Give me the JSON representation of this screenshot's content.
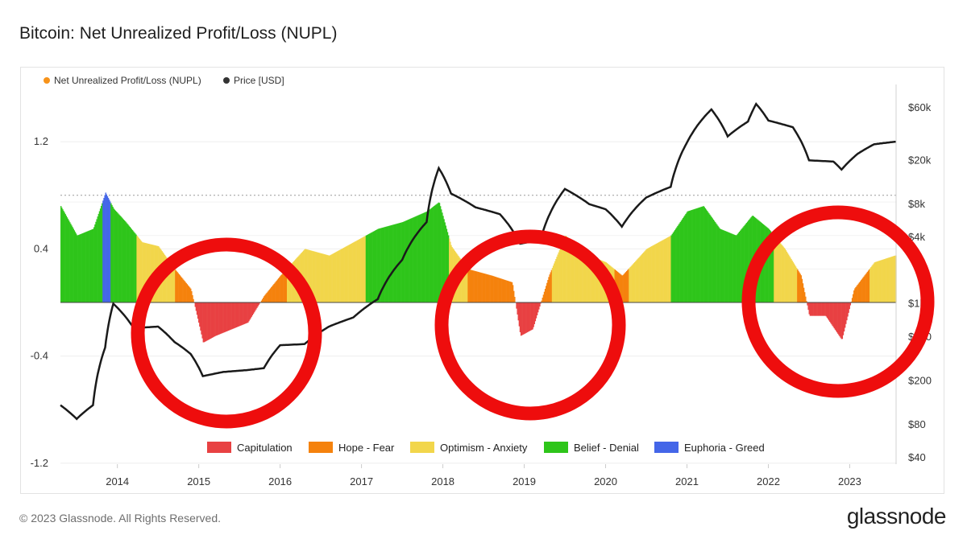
{
  "page": {
    "title": "Bitcoin: Net Unrealized Profit/Loss (NUPL)",
    "copyright": "© 2023 Glassnode. All Rights Reserved.",
    "logo": "glassnode"
  },
  "chart_data": {
    "type": "bar",
    "legend_top": [
      {
        "label": "Net Unrealized Profit/Loss (NUPL)",
        "color": "#f7931a"
      },
      {
        "label": "Price [USD]",
        "color": "#333333"
      }
    ],
    "legend_bottom": [
      {
        "label": "Capitulation",
        "color": "#e84142"
      },
      {
        "label": "Hope - Fear",
        "color": "#f5820d"
      },
      {
        "label": "Optimism - Anxiety",
        "color": "#f2d64b"
      },
      {
        "label": "Belief - Denial",
        "color": "#2ec51a"
      },
      {
        "label": "Euphoria - Greed",
        "color": "#4466e8"
      }
    ],
    "x_ticks": [
      "2014",
      "2015",
      "2016",
      "2017",
      "2018",
      "2019",
      "2020",
      "2021",
      "2022",
      "2023"
    ],
    "left_axis": {
      "ticks": [
        "1.2",
        "0.4",
        "-0.4",
        "-1.2"
      ],
      "tick_values": [
        1.2,
        0.4,
        -0.4,
        -1.2
      ],
      "range": [
        -1.2,
        1.2
      ]
    },
    "right_axis": {
      "ticks": [
        "$60k",
        "$20k",
        "$8k",
        "$4k",
        "$1k",
        "$500",
        "$200",
        "$80",
        "$40"
      ],
      "tick_values": [
        60000,
        20000,
        8000,
        4000,
        1000,
        500,
        200,
        80,
        40
      ],
      "scale": "log"
    },
    "nupl_series": [
      {
        "year": 2013.3,
        "value": 0.72
      },
      {
        "year": 2013.5,
        "value": 0.5
      },
      {
        "year": 2013.7,
        "value": 0.55
      },
      {
        "year": 2013.85,
        "value": 0.82
      },
      {
        "year": 2013.95,
        "value": 0.7
      },
      {
        "year": 2014.1,
        "value": 0.6
      },
      {
        "year": 2014.3,
        "value": 0.45
      },
      {
        "year": 2014.5,
        "value": 0.42
      },
      {
        "year": 2014.7,
        "value": 0.25
      },
      {
        "year": 2014.9,
        "value": 0.1
      },
      {
        "year": 2015.05,
        "value": -0.3
      },
      {
        "year": 2015.2,
        "value": -0.25
      },
      {
        "year": 2015.4,
        "value": -0.2
      },
      {
        "year": 2015.6,
        "value": -0.15
      },
      {
        "year": 2015.8,
        "value": 0.05
      },
      {
        "year": 2016.0,
        "value": 0.2
      },
      {
        "year": 2016.3,
        "value": 0.4
      },
      {
        "year": 2016.6,
        "value": 0.35
      },
      {
        "year": 2016.9,
        "value": 0.45
      },
      {
        "year": 2017.2,
        "value": 0.55
      },
      {
        "year": 2017.5,
        "value": 0.6
      },
      {
        "year": 2017.8,
        "value": 0.68
      },
      {
        "year": 2017.95,
        "value": 0.75
      },
      {
        "year": 2018.1,
        "value": 0.42
      },
      {
        "year": 2018.3,
        "value": 0.25
      },
      {
        "year": 2018.6,
        "value": 0.2
      },
      {
        "year": 2018.85,
        "value": 0.15
      },
      {
        "year": 2018.95,
        "value": -0.25
      },
      {
        "year": 2019.1,
        "value": -0.2
      },
      {
        "year": 2019.3,
        "value": 0.2
      },
      {
        "year": 2019.5,
        "value": 0.5
      },
      {
        "year": 2019.8,
        "value": 0.35
      },
      {
        "year": 2020.0,
        "value": 0.3
      },
      {
        "year": 2020.2,
        "value": 0.2
      },
      {
        "year": 2020.5,
        "value": 0.4
      },
      {
        "year": 2020.8,
        "value": 0.5
      },
      {
        "year": 2021.0,
        "value": 0.68
      },
      {
        "year": 2021.2,
        "value": 0.72
      },
      {
        "year": 2021.4,
        "value": 0.55
      },
      {
        "year": 2021.6,
        "value": 0.5
      },
      {
        "year": 2021.8,
        "value": 0.65
      },
      {
        "year": 2022.0,
        "value": 0.55
      },
      {
        "year": 2022.2,
        "value": 0.4
      },
      {
        "year": 2022.4,
        "value": 0.2
      },
      {
        "year": 2022.5,
        "value": -0.1
      },
      {
        "year": 2022.7,
        "value": -0.1
      },
      {
        "year": 2022.9,
        "value": -0.28
      },
      {
        "year": 2023.05,
        "value": 0.1
      },
      {
        "year": 2023.3,
        "value": 0.3
      },
      {
        "year": 2023.55,
        "value": 0.35
      }
    ],
    "price_series": [
      {
        "year": 2013.3,
        "price": 120
      },
      {
        "year": 2013.5,
        "price": 90
      },
      {
        "year": 2013.7,
        "price": 120
      },
      {
        "year": 2013.85,
        "price": 400
      },
      {
        "year": 2013.95,
        "price": 1000
      },
      {
        "year": 2014.2,
        "price": 600
      },
      {
        "year": 2014.5,
        "price": 620
      },
      {
        "year": 2014.7,
        "price": 450
      },
      {
        "year": 2014.9,
        "price": 350
      },
      {
        "year": 2015.05,
        "price": 220
      },
      {
        "year": 2015.3,
        "price": 240
      },
      {
        "year": 2015.6,
        "price": 250
      },
      {
        "year": 2015.8,
        "price": 260
      },
      {
        "year": 2016.0,
        "price": 420
      },
      {
        "year": 2016.3,
        "price": 430
      },
      {
        "year": 2016.6,
        "price": 620
      },
      {
        "year": 2016.9,
        "price": 750
      },
      {
        "year": 2017.2,
        "price": 1100
      },
      {
        "year": 2017.5,
        "price": 2500
      },
      {
        "year": 2017.8,
        "price": 5500
      },
      {
        "year": 2017.95,
        "price": 17000
      },
      {
        "year": 2018.1,
        "price": 10000
      },
      {
        "year": 2018.4,
        "price": 7500
      },
      {
        "year": 2018.7,
        "price": 6500
      },
      {
        "year": 2018.95,
        "price": 3500
      },
      {
        "year": 2019.2,
        "price": 3800
      },
      {
        "year": 2019.5,
        "price": 11000
      },
      {
        "year": 2019.8,
        "price": 8000
      },
      {
        "year": 2020.0,
        "price": 7200
      },
      {
        "year": 2020.2,
        "price": 5000
      },
      {
        "year": 2020.5,
        "price": 9200
      },
      {
        "year": 2020.8,
        "price": 11500
      },
      {
        "year": 2021.0,
        "price": 29000
      },
      {
        "year": 2021.3,
        "price": 58000
      },
      {
        "year": 2021.5,
        "price": 33000
      },
      {
        "year": 2021.75,
        "price": 45000
      },
      {
        "year": 2021.85,
        "price": 65000
      },
      {
        "year": 2022.0,
        "price": 46000
      },
      {
        "year": 2022.3,
        "price": 40000
      },
      {
        "year": 2022.5,
        "price": 20000
      },
      {
        "year": 2022.8,
        "price": 19500
      },
      {
        "year": 2022.9,
        "price": 16500
      },
      {
        "year": 2023.1,
        "price": 23000
      },
      {
        "year": 2023.3,
        "price": 28000
      },
      {
        "year": 2023.55,
        "price": 29500
      }
    ],
    "grid": true
  }
}
